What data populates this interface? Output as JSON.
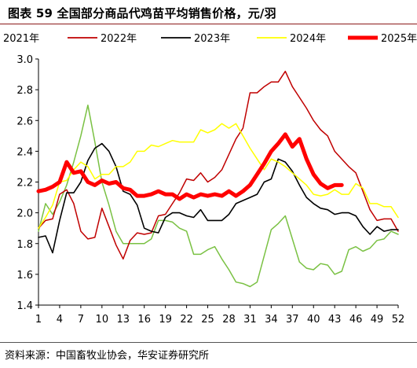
{
  "title": "图表 59  全国部分商品代鸡苗平均销售价格，元/羽",
  "source": "资料来源：中国畜牧业协会，华安证券研究所",
  "colors": {
    "2021": "#7ac143",
    "2022": "#c00000",
    "2023": "#000000",
    "2024": "#ffff00",
    "2025": "#ff0000"
  },
  "chart_data": {
    "type": "line",
    "xticks": [
      1,
      4,
      7,
      10,
      13,
      16,
      19,
      22,
      25,
      28,
      31,
      34,
      37,
      40,
      43,
      46,
      49,
      52
    ],
    "yticks": [
      "1.4",
      "1.6",
      "1.8",
      "2.0",
      "2.2",
      "2.4",
      "2.6",
      "2.8",
      "3.0"
    ],
    "xlim": [
      1,
      52
    ],
    "ylim": [
      1.4,
      3.0
    ],
    "grid": false,
    "legend": "top",
    "series": [
      {
        "name": "2021年",
        "x": [
          1,
          2,
          3,
          4,
          5,
          6,
          7,
          8,
          9,
          10,
          11,
          12,
          13,
          14,
          15,
          16,
          17,
          18,
          19,
          20,
          21,
          22,
          23,
          24,
          25,
          26,
          27,
          28,
          29,
          30,
          31,
          32,
          33,
          34,
          35,
          36,
          37,
          38,
          39,
          40,
          41,
          42,
          43,
          44,
          45,
          46,
          47,
          48,
          49,
          50,
          51,
          52
        ],
        "y": [
          1.88,
          2.06,
          1.99,
          2.07,
          2.18,
          2.33,
          2.5,
          2.7,
          2.46,
          2.2,
          2.05,
          1.88,
          1.8,
          1.8,
          1.8,
          1.8,
          1.83,
          1.95,
          1.95,
          1.94,
          1.9,
          1.88,
          1.73,
          1.73,
          1.76,
          1.78,
          1.7,
          1.63,
          1.55,
          1.54,
          1.52,
          1.55,
          1.72,
          1.89,
          1.93,
          1.98,
          1.83,
          1.68,
          1.64,
          1.63,
          1.67,
          1.66,
          1.6,
          1.62,
          1.76,
          1.78,
          1.75,
          1.77,
          1.82,
          1.83,
          1.88,
          1.86
        ]
      },
      {
        "name": "2022年",
        "x": [
          1,
          2,
          3,
          4,
          5,
          6,
          7,
          8,
          9,
          10,
          11,
          12,
          13,
          14,
          15,
          16,
          17,
          18,
          19,
          20,
          21,
          22,
          23,
          24,
          25,
          26,
          27,
          28,
          29,
          30,
          31,
          32,
          33,
          34,
          35,
          36,
          37,
          38,
          39,
          40,
          41,
          42,
          43,
          44,
          45,
          46,
          47,
          48,
          49,
          50,
          51,
          52
        ],
        "y": [
          1.9,
          1.95,
          1.96,
          2.12,
          2.15,
          2.06,
          1.88,
          1.83,
          1.84,
          2.03,
          1.91,
          1.79,
          1.7,
          1.82,
          1.87,
          1.86,
          1.87,
          1.98,
          1.99,
          2.06,
          2.13,
          2.22,
          2.21,
          2.26,
          2.2,
          2.23,
          2.28,
          2.38,
          2.48,
          2.55,
          2.78,
          2.78,
          2.82,
          2.85,
          2.85,
          2.92,
          2.82,
          2.75,
          2.68,
          2.6,
          2.54,
          2.5,
          2.4,
          2.35,
          2.3,
          2.26,
          2.14,
          2.02,
          1.95,
          1.96,
          1.96,
          1.88
        ]
      },
      {
        "name": "2023年",
        "x": [
          1,
          2,
          3,
          4,
          5,
          6,
          7,
          8,
          9,
          10,
          11,
          12,
          13,
          14,
          15,
          16,
          17,
          18,
          19,
          20,
          21,
          22,
          23,
          24,
          25,
          26,
          27,
          28,
          29,
          30,
          31,
          32,
          33,
          34,
          35,
          36,
          37,
          38,
          39,
          40,
          41,
          42,
          43,
          44,
          45,
          46,
          47,
          48,
          49,
          50,
          51,
          52
        ],
        "y": [
          1.84,
          1.85,
          1.74,
          1.95,
          2.13,
          2.13,
          2.2,
          2.34,
          2.42,
          2.45,
          2.4,
          2.3,
          2.14,
          2.12,
          2.05,
          1.9,
          1.88,
          1.87,
          1.97,
          2.0,
          2.0,
          1.98,
          1.97,
          2.02,
          1.95,
          1.95,
          1.95,
          1.99,
          2.06,
          2.08,
          2.1,
          2.12,
          2.2,
          2.22,
          2.35,
          2.33,
          2.27,
          2.18,
          2.1,
          2.06,
          2.03,
          2.02,
          1.99,
          2.0,
          2.0,
          1.98,
          1.91,
          1.86,
          1.91,
          1.88,
          1.89,
          1.89
        ]
      },
      {
        "name": "2024年",
        "x": [
          1,
          2,
          3,
          4,
          5,
          6,
          7,
          8,
          9,
          10,
          11,
          12,
          13,
          14,
          15,
          16,
          17,
          18,
          19,
          20,
          21,
          22,
          23,
          24,
          25,
          26,
          27,
          28,
          29,
          30,
          31,
          32,
          33,
          34,
          35,
          36,
          37,
          38,
          39,
          40,
          41,
          42,
          43,
          44,
          45,
          46,
          47,
          48,
          49,
          50,
          51,
          52
        ],
        "y": [
          1.9,
          1.97,
          2.05,
          2.2,
          2.21,
          2.28,
          2.33,
          2.3,
          2.22,
          2.25,
          2.25,
          2.3,
          2.3,
          2.33,
          2.4,
          2.4,
          2.44,
          2.43,
          2.45,
          2.47,
          2.46,
          2.46,
          2.46,
          2.54,
          2.52,
          2.54,
          2.58,
          2.55,
          2.58,
          2.5,
          2.42,
          2.35,
          2.28,
          2.35,
          2.33,
          2.3,
          2.26,
          2.22,
          2.18,
          2.12,
          2.11,
          2.12,
          2.15,
          2.12,
          2.12,
          2.19,
          2.16,
          2.06,
          2.06,
          2.04,
          2.04,
          1.97
        ]
      },
      {
        "name": "2025年",
        "x": [
          1,
          2,
          3,
          4,
          5,
          6,
          7,
          8,
          9,
          10,
          11,
          12,
          13,
          14,
          15,
          16,
          17,
          18,
          19,
          20,
          21,
          22,
          23,
          24,
          25,
          26,
          27,
          28,
          29,
          30,
          31,
          32,
          33,
          34,
          35,
          36,
          37,
          38,
          39,
          40,
          41,
          42,
          43,
          44
        ],
        "y": [
          2.14,
          2.15,
          2.17,
          2.2,
          2.33,
          2.26,
          2.27,
          2.2,
          2.18,
          2.21,
          2.19,
          2.2,
          2.16,
          2.15,
          2.11,
          2.11,
          2.12,
          2.14,
          2.12,
          2.12,
          2.09,
          2.12,
          2.1,
          2.12,
          2.11,
          2.12,
          2.11,
          2.14,
          2.11,
          2.14,
          2.18,
          2.25,
          2.32,
          2.4,
          2.45,
          2.51,
          2.43,
          2.48,
          2.35,
          2.25,
          2.19,
          2.16,
          2.18,
          2.18
        ]
      }
    ]
  }
}
